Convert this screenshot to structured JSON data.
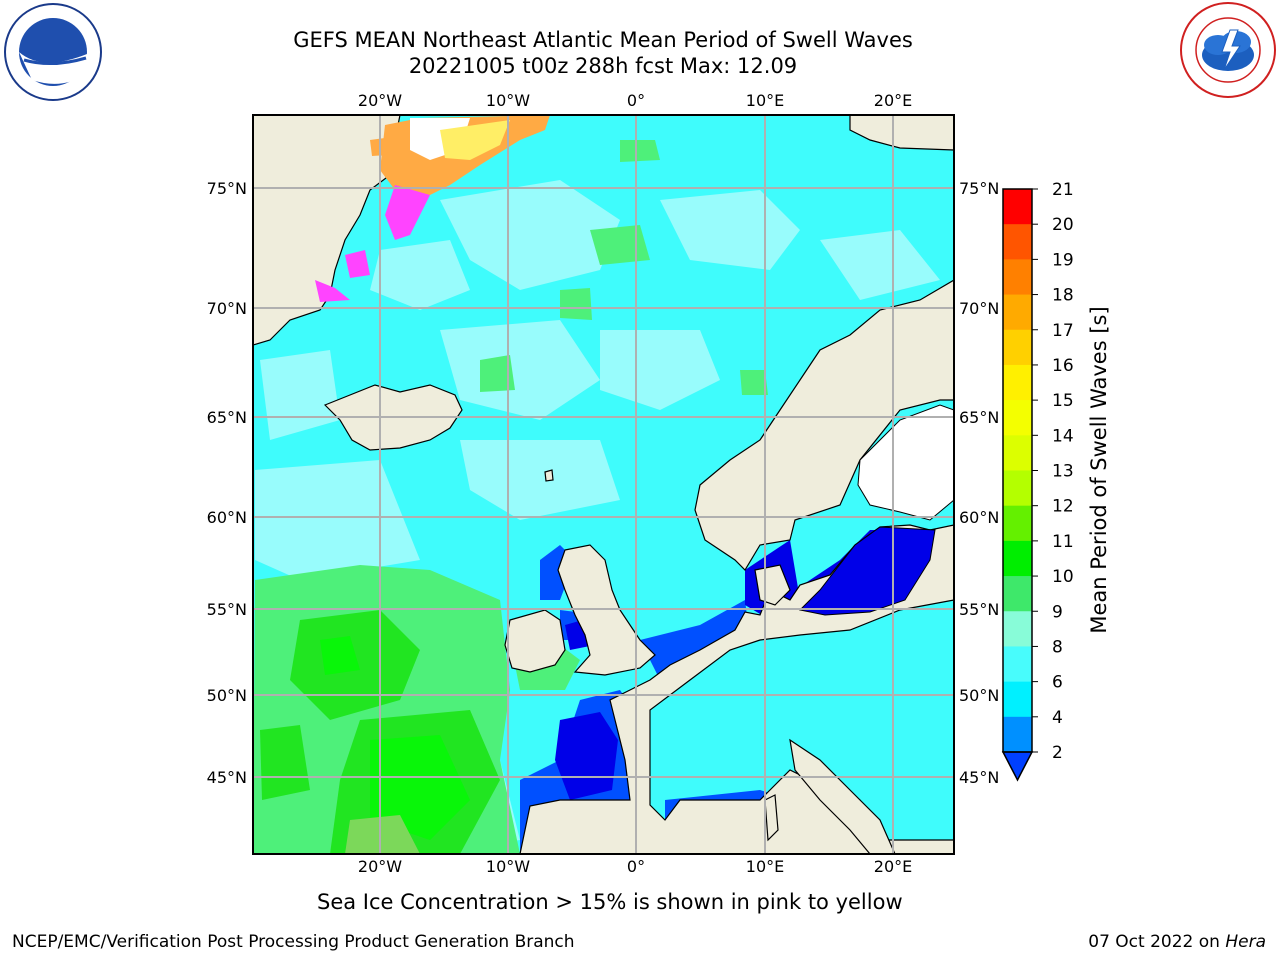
{
  "header": {
    "title_line1": "GEFS MEAN Northeast Atlantic Mean Period of Swell Waves",
    "title_line2": "20221005 t00z 288h fcst   Max: 12.09"
  },
  "map": {
    "lon_ticks_top": [
      "20°W",
      "10°W",
      "0°",
      "10°E",
      "20°E"
    ],
    "lon_ticks_bottom": [
      "20°W",
      "10°W",
      "0°",
      "10°E",
      "20°E"
    ],
    "lat_ticks_left": [
      "75°N",
      "70°N",
      "65°N",
      "60°N",
      "55°N",
      "50°N",
      "45°N"
    ],
    "lat_ticks_right": [
      "75°N",
      "70°N",
      "65°N",
      "60°N",
      "55°N",
      "50°N",
      "45°N"
    ],
    "colors": {
      "ocean": "#3ffcfc",
      "ocean_light": "#98fcfc",
      "land": "#efeddc",
      "green_light": "#4ef07a",
      "green": "#21e521",
      "green_bright": "#09f609",
      "blue": "#0050ff",
      "blue_dark": "#0000e8",
      "grid": "#b0b0b0",
      "ice_pink": "#ff44ff",
      "ice_orange": "#ffaa44",
      "ice_yellow": "#ffee66"
    }
  },
  "colorbar": {
    "label": "Mean Period of Swell Waves [s]",
    "ticks": [
      "21",
      "20",
      "19",
      "18",
      "17",
      "16",
      "15",
      "14",
      "13",
      "12",
      "11",
      "10",
      "9",
      "8",
      "6",
      "4",
      "2"
    ],
    "segment_colors": [
      "#ff0000",
      "#ff3300",
      "#ff5500",
      "#ff8000",
      "#ffaa00",
      "#ffd000",
      "#fff000",
      "#f4ff00",
      "#dcff00",
      "#b4ff00",
      "#64f000",
      "#00ee00",
      "#3ee86a",
      "#88fcd8",
      "#48fcfc",
      "#00f0ff",
      "#0090ff",
      "#0040ff"
    ]
  },
  "caption": "Sea Ice Concentration > 15% is shown in pink to yellow",
  "footer": {
    "left": "NCEP/EMC/Verification Post Processing Product Generation Branch",
    "right_date": "07 Oct 2022 on ",
    "right_host": "Hera"
  },
  "logos": {
    "left": "noaa-logo",
    "right": "national-weather-service-logo"
  }
}
